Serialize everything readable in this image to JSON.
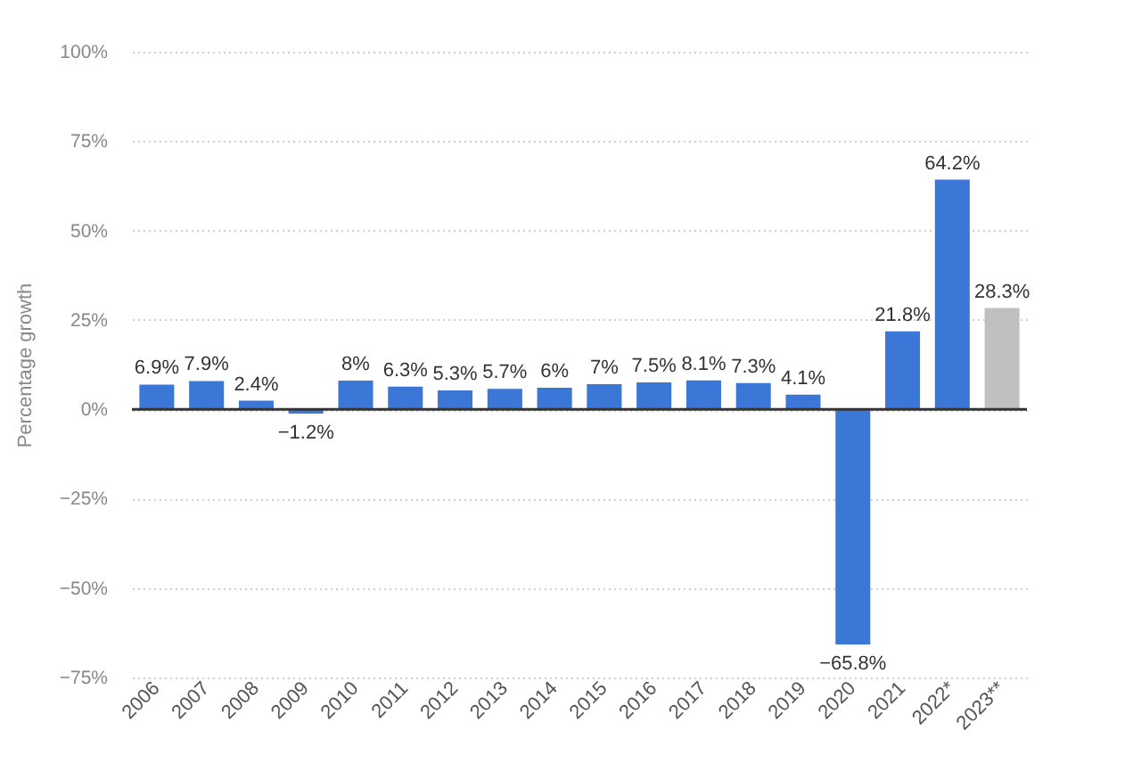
{
  "chart_data": {
    "type": "bar",
    "ylabel": "Percentage growth",
    "categories": [
      "2006",
      "2007",
      "2008",
      "2009",
      "2010",
      "2011",
      "2012",
      "2013",
      "2014",
      "2015",
      "2016",
      "2017",
      "2018",
      "2019",
      "2020",
      "2021",
      "2022*",
      "2023**"
    ],
    "values": [
      6.9,
      7.9,
      2.4,
      -1.2,
      8,
      6.3,
      5.3,
      5.7,
      6,
      7,
      7.5,
      8.1,
      7.3,
      4.1,
      -65.8,
      21.8,
      64.2,
      28.3
    ],
    "colors": [
      "#3a77d6",
      "#3a77d6",
      "#3a77d6",
      "#3a77d6",
      "#3a77d6",
      "#3a77d6",
      "#3a77d6",
      "#3a77d6",
      "#3a77d6",
      "#3a77d6",
      "#3a77d6",
      "#3a77d6",
      "#3a77d6",
      "#3a77d6",
      "#3a77d6",
      "#3a77d6",
      "#3a77d6",
      "#c0c0c0"
    ],
    "value_labels": [
      "6.9%",
      "7.9%",
      "2.4%",
      "−1.2%",
      "8%",
      "6.3%",
      "5.3%",
      "5.7%",
      "6%",
      "7%",
      "7.5%",
      "8.1%",
      "7.3%",
      "4.1%",
      "−65.8%",
      "21.8%",
      "64.2%",
      "28.3%"
    ],
    "ylim": [
      -75,
      100
    ],
    "yticks": [
      {
        "value": 100,
        "label": "100%"
      },
      {
        "value": 75,
        "label": "75%"
      },
      {
        "value": 50,
        "label": "50%"
      },
      {
        "value": 25,
        "label": "25%"
      },
      {
        "value": 0,
        "label": "0%"
      },
      {
        "value": -25,
        "label": "−25%"
      },
      {
        "value": -50,
        "label": "−50%"
      },
      {
        "value": -75,
        "label": "−75%"
      }
    ],
    "grid": "y",
    "ref_lines": [
      {
        "axis": "y",
        "value": 0,
        "color": "#333333"
      }
    ]
  }
}
